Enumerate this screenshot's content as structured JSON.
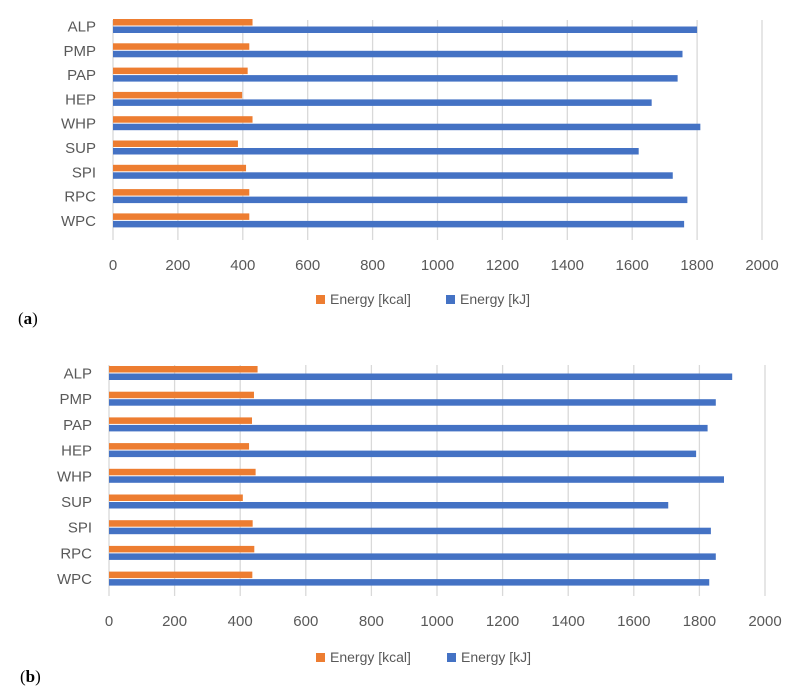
{
  "colors": {
    "kcal": "#ED7D31",
    "kj": "#4472C4",
    "grid": "#D9D9D9",
    "text": "#595959"
  },
  "panels": [
    {
      "label_open": "(",
      "label_letter": "a",
      "label_close": ")"
    },
    {
      "label_open": "(",
      "label_letter": "b",
      "label_close": ")"
    }
  ],
  "chart_data": [
    {
      "type": "bar",
      "orientation": "horizontal",
      "categories": [
        "ALP",
        "PMP",
        "PAP",
        "HEP",
        "WHP",
        "SUP",
        "SPI",
        "RPC",
        "WPC"
      ],
      "series": [
        {
          "name": "Energy [kcal]",
          "color": "#ED7D31",
          "values": [
            430,
            420,
            415,
            398,
            430,
            385,
            410,
            420,
            420
          ]
        },
        {
          "name": "Energy [kJ]",
          "color": "#4472C4",
          "values": [
            1800,
            1755,
            1740,
            1660,
            1810,
            1620,
            1725,
            1770,
            1760
          ]
        }
      ],
      "xlim": [
        0,
        2000
      ],
      "xticks": [
        "0",
        "200",
        "400",
        "600",
        "800",
        "1000",
        "1200",
        "1400",
        "1600",
        "1800",
        "2000"
      ],
      "grid": "vertical",
      "legend": "bottom"
    },
    {
      "type": "bar",
      "orientation": "horizontal",
      "categories": [
        "ALP",
        "PMP",
        "PAP",
        "HEP",
        "WHP",
        "SUP",
        "SPI",
        "RPC",
        "WPC"
      ],
      "series": [
        {
          "name": "Energy [kcal]",
          "color": "#ED7D31",
          "values": [
            453,
            442,
            436,
            427,
            447,
            408,
            438,
            443,
            437
          ]
        },
        {
          "name": "Energy [kJ]",
          "color": "#4472C4",
          "values": [
            1900,
            1850,
            1825,
            1790,
            1875,
            1705,
            1835,
            1850,
            1830
          ]
        }
      ],
      "xlim": [
        0,
        2000
      ],
      "xticks": [
        "0",
        "200",
        "400",
        "600",
        "800",
        "1000",
        "1200",
        "1400",
        "1600",
        "1800",
        "2000"
      ],
      "grid": "vertical",
      "legend": "bottom"
    }
  ]
}
